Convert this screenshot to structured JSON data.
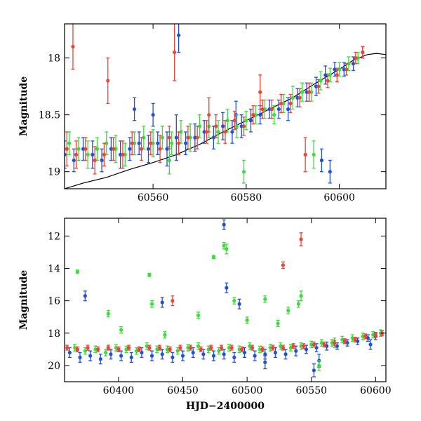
{
  "chart_data": [
    {
      "type": "scatter",
      "panel": "top",
      "xlabel": "",
      "ylabel": "Magnitude",
      "xlim": [
        60541,
        60610
      ],
      "ylim": [
        19.15,
        17.7
      ],
      "y_inverted": true,
      "x_ticks": [
        60560,
        60580,
        60600
      ],
      "y_ticks": [
        18,
        18.5,
        19
      ],
      "x_tick_labels": [
        "60560",
        "60580",
        "60600"
      ],
      "y_tick_labels": [
        "18",
        "18.5",
        "19"
      ],
      "colors": {
        "blue": "#1f4fe0",
        "green": "#3cdc3c",
        "red": "#ee4433",
        "model": "#000000"
      },
      "series": [
        {
          "color": "blue",
          "x": [
            60541,
            60543,
            60545,
            60547,
            60549,
            60551,
            60553,
            60555,
            60557,
            60559,
            60561,
            60563,
            60565,
            60567,
            60569,
            60571,
            60573,
            60575,
            60577,
            60579,
            60581,
            60583,
            60585,
            60587,
            60589,
            60591,
            60593,
            60595,
            60597,
            60599,
            60601,
            60603,
            60605,
            60556,
            60560,
            60565.5,
            60577.8,
            60596.2,
            60598
          ],
          "y": [
            18.85,
            18.9,
            18.8,
            18.85,
            18.9,
            18.8,
            18.85,
            18.8,
            18.75,
            18.8,
            18.75,
            18.8,
            18.7,
            18.75,
            18.7,
            18.65,
            18.7,
            18.6,
            18.65,
            18.6,
            18.55,
            18.5,
            18.45,
            18.45,
            18.45,
            18.35,
            18.3,
            18.25,
            18.15,
            18.1,
            18.1,
            18.05,
            17.95,
            18.45,
            18.5,
            17.8,
            18.5,
            18.9,
            19.0
          ],
          "err": [
            0.12,
            0.1,
            0.1,
            0.12,
            0.1,
            0.1,
            0.12,
            0.1,
            0.1,
            0.12,
            0.1,
            0.15,
            0.2,
            0.1,
            0.12,
            0.1,
            0.1,
            0.12,
            0.1,
            0.1,
            0.1,
            0.08,
            0.08,
            0.08,
            0.1,
            0.08,
            0.08,
            0.08,
            0.08,
            0.06,
            0.06,
            0.06,
            0.05,
            0.1,
            0.1,
            0.15,
            0.12,
            0.1,
            0.1
          ]
        },
        {
          "color": "green",
          "x": [
            60542,
            60544,
            60546,
            60548,
            60550,
            60552,
            60554,
            60556,
            60558,
            60560,
            60562,
            60564,
            60566,
            60568,
            60570,
            60572,
            60574,
            60576,
            60578,
            60580,
            60582,
            60584,
            60586,
            60588,
            60590,
            60592,
            60594,
            60596,
            60598,
            60600,
            60602,
            60604,
            60563.5,
            60579.5,
            60594.5
          ],
          "y": [
            18.75,
            18.8,
            18.85,
            18.8,
            18.75,
            18.8,
            18.85,
            18.75,
            18.7,
            18.75,
            18.7,
            18.75,
            18.65,
            18.7,
            18.6,
            18.6,
            18.65,
            18.55,
            18.6,
            18.55,
            18.5,
            18.45,
            18.5,
            18.4,
            18.35,
            18.3,
            18.3,
            18.2,
            18.15,
            18.1,
            18.05,
            18.0,
            18.9,
            19.0,
            18.85
          ],
          "err": [
            0.1,
            0.1,
            0.12,
            0.1,
            0.1,
            0.12,
            0.1,
            0.1,
            0.1,
            0.12,
            0.1,
            0.1,
            0.1,
            0.12,
            0.1,
            0.1,
            0.1,
            0.1,
            0.1,
            0.08,
            0.08,
            0.08,
            0.08,
            0.08,
            0.1,
            0.08,
            0.08,
            0.08,
            0.06,
            0.06,
            0.06,
            0.05,
            0.12,
            0.1,
            0.12
          ]
        },
        {
          "color": "red",
          "x": [
            60541.5,
            60543.5,
            60545.5,
            60547.5,
            60549.5,
            60551.5,
            60553.5,
            60555.5,
            60557.5,
            60559.5,
            60561.5,
            60563.5,
            60565.5,
            60567.5,
            60569.5,
            60571.5,
            60573.5,
            60575.5,
            60577.5,
            60579.5,
            60581.5,
            60583.5,
            60585.5,
            60587.5,
            60589.5,
            60591.5,
            60593.5,
            60595.5,
            60597.5,
            60599.5,
            60601.5,
            60603.5,
            60605,
            60542.8,
            60550.3,
            60564.6,
            60572,
            60583,
            60592.7
          ],
          "y": [
            18.8,
            18.85,
            18.8,
            18.9,
            18.85,
            18.8,
            18.85,
            18.75,
            18.8,
            18.75,
            18.8,
            18.7,
            18.75,
            18.7,
            18.7,
            18.65,
            18.6,
            18.65,
            18.55,
            18.6,
            18.5,
            18.45,
            18.45,
            18.4,
            18.4,
            18.35,
            18.3,
            18.25,
            18.2,
            18.15,
            18.1,
            18.0,
            17.95,
            17.9,
            18.2,
            17.95,
            18.5,
            18.3,
            18.85
          ],
          "err": [
            0.15,
            0.12,
            0.1,
            0.12,
            0.1,
            0.1,
            0.12,
            0.1,
            0.1,
            0.1,
            0.12,
            0.1,
            0.1,
            0.1,
            0.1,
            0.1,
            0.1,
            0.1,
            0.08,
            0.08,
            0.08,
            0.08,
            0.08,
            0.08,
            0.08,
            0.08,
            0.08,
            0.06,
            0.06,
            0.06,
            0.05,
            0.05,
            0.05,
            0.2,
            0.2,
            0.25,
            0.15,
            0.15,
            0.15
          ]
        }
      ],
      "model_curve": {
        "x": [
          60541,
          60545,
          60550,
          60555,
          60560,
          60565,
          60570,
          60575,
          60580,
          60585,
          60590,
          60595,
          60600,
          60603,
          60606,
          60608,
          60610
        ],
        "y": [
          19.15,
          19.1,
          19.05,
          18.98,
          18.92,
          18.85,
          18.76,
          18.65,
          18.55,
          18.45,
          18.35,
          18.22,
          18.1,
          18.02,
          17.97,
          17.96,
          17.97
        ]
      }
    },
    {
      "type": "scatter",
      "panel": "bottom",
      "xlabel": "HJD−2400000",
      "ylabel": "Magnitude",
      "xlim": [
        60358,
        60608
      ],
      "ylim": [
        21.0,
        10.9
      ],
      "y_inverted": true,
      "x_ticks": [
        60400,
        60450,
        60500,
        60550,
        60600
      ],
      "y_ticks": [
        12,
        14,
        16,
        18,
        20
      ],
      "x_tick_labels": [
        "60400",
        "60450",
        "60500",
        "60550",
        "60600"
      ],
      "y_tick_labels": [
        "12",
        "14",
        "16",
        "18",
        "20"
      ],
      "colors": {
        "blue": "#1f4fe0",
        "green": "#3cdc3c",
        "red": "#ee4433"
      },
      "series": [
        {
          "color": "blue",
          "x": [
            60362,
            60370,
            60378,
            60386,
            60394,
            60402,
            60410,
            60418,
            60426,
            60434,
            60442,
            60450,
            60458,
            60466,
            60474,
            60482,
            60490,
            60498,
            60506,
            60514,
            60522,
            60530,
            60538,
            60546,
            60554,
            60562,
            60570,
            60578,
            60586,
            60594,
            60600,
            60604,
            60374,
            60434,
            60482,
            60484,
            60494,
            60514,
            60552,
            60556,
            60596
          ],
          "y": [
            19.2,
            19.5,
            19.4,
            19.6,
            19.3,
            19.4,
            19.5,
            19.2,
            19.4,
            19.3,
            19.5,
            19.4,
            19.2,
            19.3,
            19.4,
            19.3,
            19.5,
            19.2,
            19.4,
            19.3,
            19.2,
            19.3,
            19.1,
            19.0,
            18.9,
            18.8,
            18.8,
            18.6,
            18.5,
            18.3,
            18.2,
            18.0,
            15.7,
            16.1,
            11.3,
            15.2,
            16.2,
            19.8,
            20.3,
            19.7,
            18.7
          ],
          "err": [
            0.3,
            0.3,
            0.3,
            0.3,
            0.3,
            0.3,
            0.3,
            0.3,
            0.3,
            0.3,
            0.3,
            0.3,
            0.3,
            0.3,
            0.3,
            0.3,
            0.3,
            0.3,
            0.3,
            0.3,
            0.3,
            0.3,
            0.3,
            0.25,
            0.25,
            0.25,
            0.2,
            0.2,
            0.2,
            0.2,
            0.2,
            0.2,
            0.3,
            0.3,
            0.3,
            0.3,
            0.3,
            0.4,
            0.4,
            0.4,
            0.3
          ]
        },
        {
          "color": "green",
          "x": [
            60366,
            60374,
            60382,
            60390,
            60398,
            60406,
            60414,
            60422,
            60430,
            60438,
            60446,
            60454,
            60462,
            60470,
            60478,
            60486,
            60494,
            60502,
            60510,
            60518,
            60526,
            60534,
            60542,
            60550,
            60558,
            60566,
            60574,
            60582,
            60590,
            60598,
            60604,
            60368,
            60392,
            60402,
            60424,
            60426,
            60436,
            60462,
            60474,
            60482,
            60484,
            60490,
            60500,
            60514,
            60524,
            60532,
            60540,
            60542,
            60568,
            60556
          ],
          "y": [
            18.9,
            19.1,
            19.0,
            19.2,
            18.9,
            19.0,
            19.1,
            18.8,
            19.0,
            19.0,
            19.1,
            18.9,
            18.8,
            19.0,
            19.1,
            18.9,
            19.0,
            18.8,
            19.0,
            18.9,
            18.8,
            18.9,
            18.8,
            18.7,
            18.6,
            18.6,
            18.4,
            18.3,
            18.2,
            18.1,
            18.0,
            14.2,
            16.8,
            17.8,
            14.4,
            16.2,
            18.1,
            16.9,
            13.3,
            12.6,
            12.8,
            16.0,
            17.2,
            15.9,
            17.4,
            16.6,
            16.2,
            15.7,
            18.6,
            20.0
          ],
          "err": [
            0.2,
            0.2,
            0.2,
            0.2,
            0.2,
            0.2,
            0.2,
            0.2,
            0.2,
            0.2,
            0.2,
            0.2,
            0.2,
            0.2,
            0.2,
            0.2,
            0.2,
            0.2,
            0.2,
            0.2,
            0.2,
            0.2,
            0.2,
            0.2,
            0.2,
            0.2,
            0.2,
            0.2,
            0.2,
            0.2,
            0.2,
            0.1,
            0.2,
            0.2,
            0.1,
            0.2,
            0.2,
            0.2,
            0.1,
            0.2,
            0.3,
            0.2,
            0.2,
            0.2,
            0.2,
            0.2,
            0.2,
            0.3,
            0.3,
            0.3
          ]
        },
        {
          "color": "red",
          "x": [
            60360,
            60368,
            60376,
            60384,
            60392,
            60400,
            60408,
            60416,
            60424,
            60432,
            60440,
            60448,
            60456,
            60464,
            60472,
            60480,
            60488,
            60496,
            60504,
            60512,
            60520,
            60528,
            60536,
            60544,
            60552,
            60560,
            60568,
            60576,
            60584,
            60592,
            60600,
            60605,
            60442,
            60528,
            60542
          ],
          "y": [
            18.9,
            19.0,
            18.9,
            19.0,
            18.9,
            19.0,
            18.9,
            19.0,
            18.9,
            18.9,
            19.0,
            18.9,
            18.9,
            19.0,
            18.9,
            18.9,
            18.9,
            19.0,
            18.9,
            19.0,
            18.9,
            18.9,
            18.8,
            18.8,
            18.7,
            18.7,
            18.6,
            18.5,
            18.4,
            18.2,
            18.1,
            18.0,
            16.0,
            13.8,
            12.2
          ],
          "err": [
            0.15,
            0.15,
            0.15,
            0.15,
            0.15,
            0.15,
            0.15,
            0.15,
            0.15,
            0.15,
            0.15,
            0.15,
            0.15,
            0.15,
            0.15,
            0.15,
            0.15,
            0.15,
            0.15,
            0.15,
            0.15,
            0.15,
            0.15,
            0.15,
            0.15,
            0.15,
            0.15,
            0.15,
            0.15,
            0.15,
            0.15,
            0.15,
            0.3,
            0.2,
            0.4
          ]
        }
      ]
    }
  ]
}
